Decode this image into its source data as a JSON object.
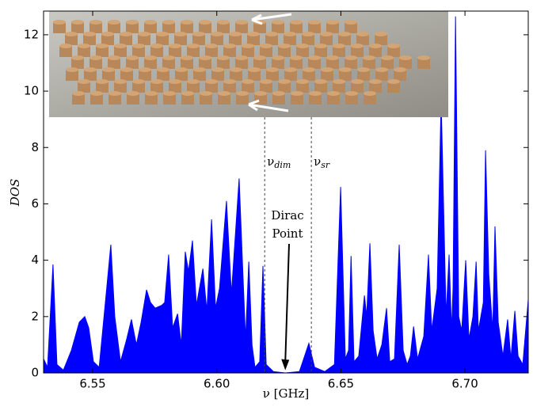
{
  "chart_data": {
    "type": "area",
    "xlabel": "ν [GHz]",
    "ylabel": "DOS",
    "color": "#0000ff",
    "xlim": [
      6.5302,
      6.7255
    ],
    "ylim": [
      0,
      12.84
    ],
    "xticks": [
      6.55,
      {
        "value": 6.6,
        "label": "6.60"
      },
      6.65,
      {
        "value": 6.7,
        "label": "6.70"
      }
    ],
    "yticks": [
      0,
      2,
      4,
      6,
      8,
      10,
      12
    ],
    "x": [
      6.5302,
      6.5318,
      6.534,
      6.5356,
      6.5382,
      6.5414,
      6.5446,
      6.5468,
      6.5484,
      6.5503,
      6.5526,
      6.5551,
      6.5573,
      6.5589,
      6.5612,
      6.5637,
      6.5656,
      6.5676,
      6.5695,
      6.5717,
      6.5733,
      6.5752,
      6.5778,
      6.579,
      6.5806,
      6.5822,
      6.5842,
      6.5857,
      6.5873,
      6.5886,
      6.5902,
      6.5918,
      6.5944,
      6.596,
      6.5979,
      6.5995,
      6.6011,
      6.6039,
      6.6059,
      6.609,
      6.6103,
      6.6116,
      6.6129,
      6.6142,
      6.6154,
      6.6173,
      6.6186,
      6.6199,
      6.6228,
      6.6276,
      6.6333,
      6.6371,
      6.6394,
      6.6435,
      6.6474,
      6.6499,
      6.6518,
      6.6531,
      6.6541,
      6.6553,
      6.6572,
      6.6595,
      6.6604,
      6.6617,
      6.663,
      6.6646,
      6.6665,
      6.6684,
      6.6697,
      6.6716,
      6.6735,
      6.6751,
      6.6767,
      6.678,
      6.6793,
      6.6809,
      6.6834,
      6.6853,
      6.6866,
      6.6888,
      6.6904,
      6.6924,
      6.6936,
      6.6946,
      6.6952,
      6.6962,
      6.6975,
      6.6987,
      6.7003,
      6.7016,
      6.7032,
      6.7045,
      6.7054,
      6.7074,
      6.7083,
      6.7096,
      6.7112,
      6.7121,
      6.7134,
      6.7153,
      6.7172,
      6.7185,
      6.7201,
      6.7214,
      6.7233,
      6.7255
    ],
    "values": [
      0.5,
      0.2,
      3.85,
      0.3,
      0.1,
      0.8,
      1.8,
      2.0,
      1.6,
      0.4,
      0.2,
      2.5,
      4.55,
      2.0,
      0.4,
      1.2,
      1.9,
      1.0,
      1.8,
      2.95,
      2.5,
      2.3,
      2.4,
      2.5,
      4.2,
      1.6,
      2.1,
      1.0,
      4.3,
      3.6,
      4.7,
      2.4,
      3.7,
      2.2,
      5.45,
      2.3,
      3.0,
      6.1,
      2.8,
      6.9,
      4.0,
      1.2,
      3.95,
      1.0,
      0.2,
      0.4,
      3.8,
      0.3,
      0.05,
      0,
      0.05,
      1.05,
      0.2,
      0.05,
      0.3,
      6.6,
      0.5,
      0.8,
      4.15,
      0.4,
      0.6,
      2.75,
      2.0,
      4.6,
      1.5,
      0.5,
      1.0,
      2.3,
      0.4,
      0.5,
      4.55,
      0.8,
      0.3,
      0.6,
      1.65,
      0.5,
      1.3,
      4.2,
      1.5,
      3.0,
      9.7,
      2.0,
      4.2,
      1.5,
      3.0,
      12.65,
      2.0,
      1.5,
      4.0,
      1.2,
      2.0,
      3.95,
      1.5,
      2.5,
      7.9,
      3.5,
      1.5,
      5.2,
      1.8,
      0.6,
      1.9,
      0.5,
      2.2,
      0.6,
      0.3,
      2.6
    ],
    "markers": [
      {
        "symbol": "ν",
        "sub": "dim",
        "x": 6.6193
      },
      {
        "symbol": "ν",
        "sub": "sr",
        "x": 6.6381
      }
    ],
    "annotation": {
      "lines": [
        "Dirac",
        "Point"
      ],
      "x": 6.6276,
      "y": 0.1
    }
  }
}
